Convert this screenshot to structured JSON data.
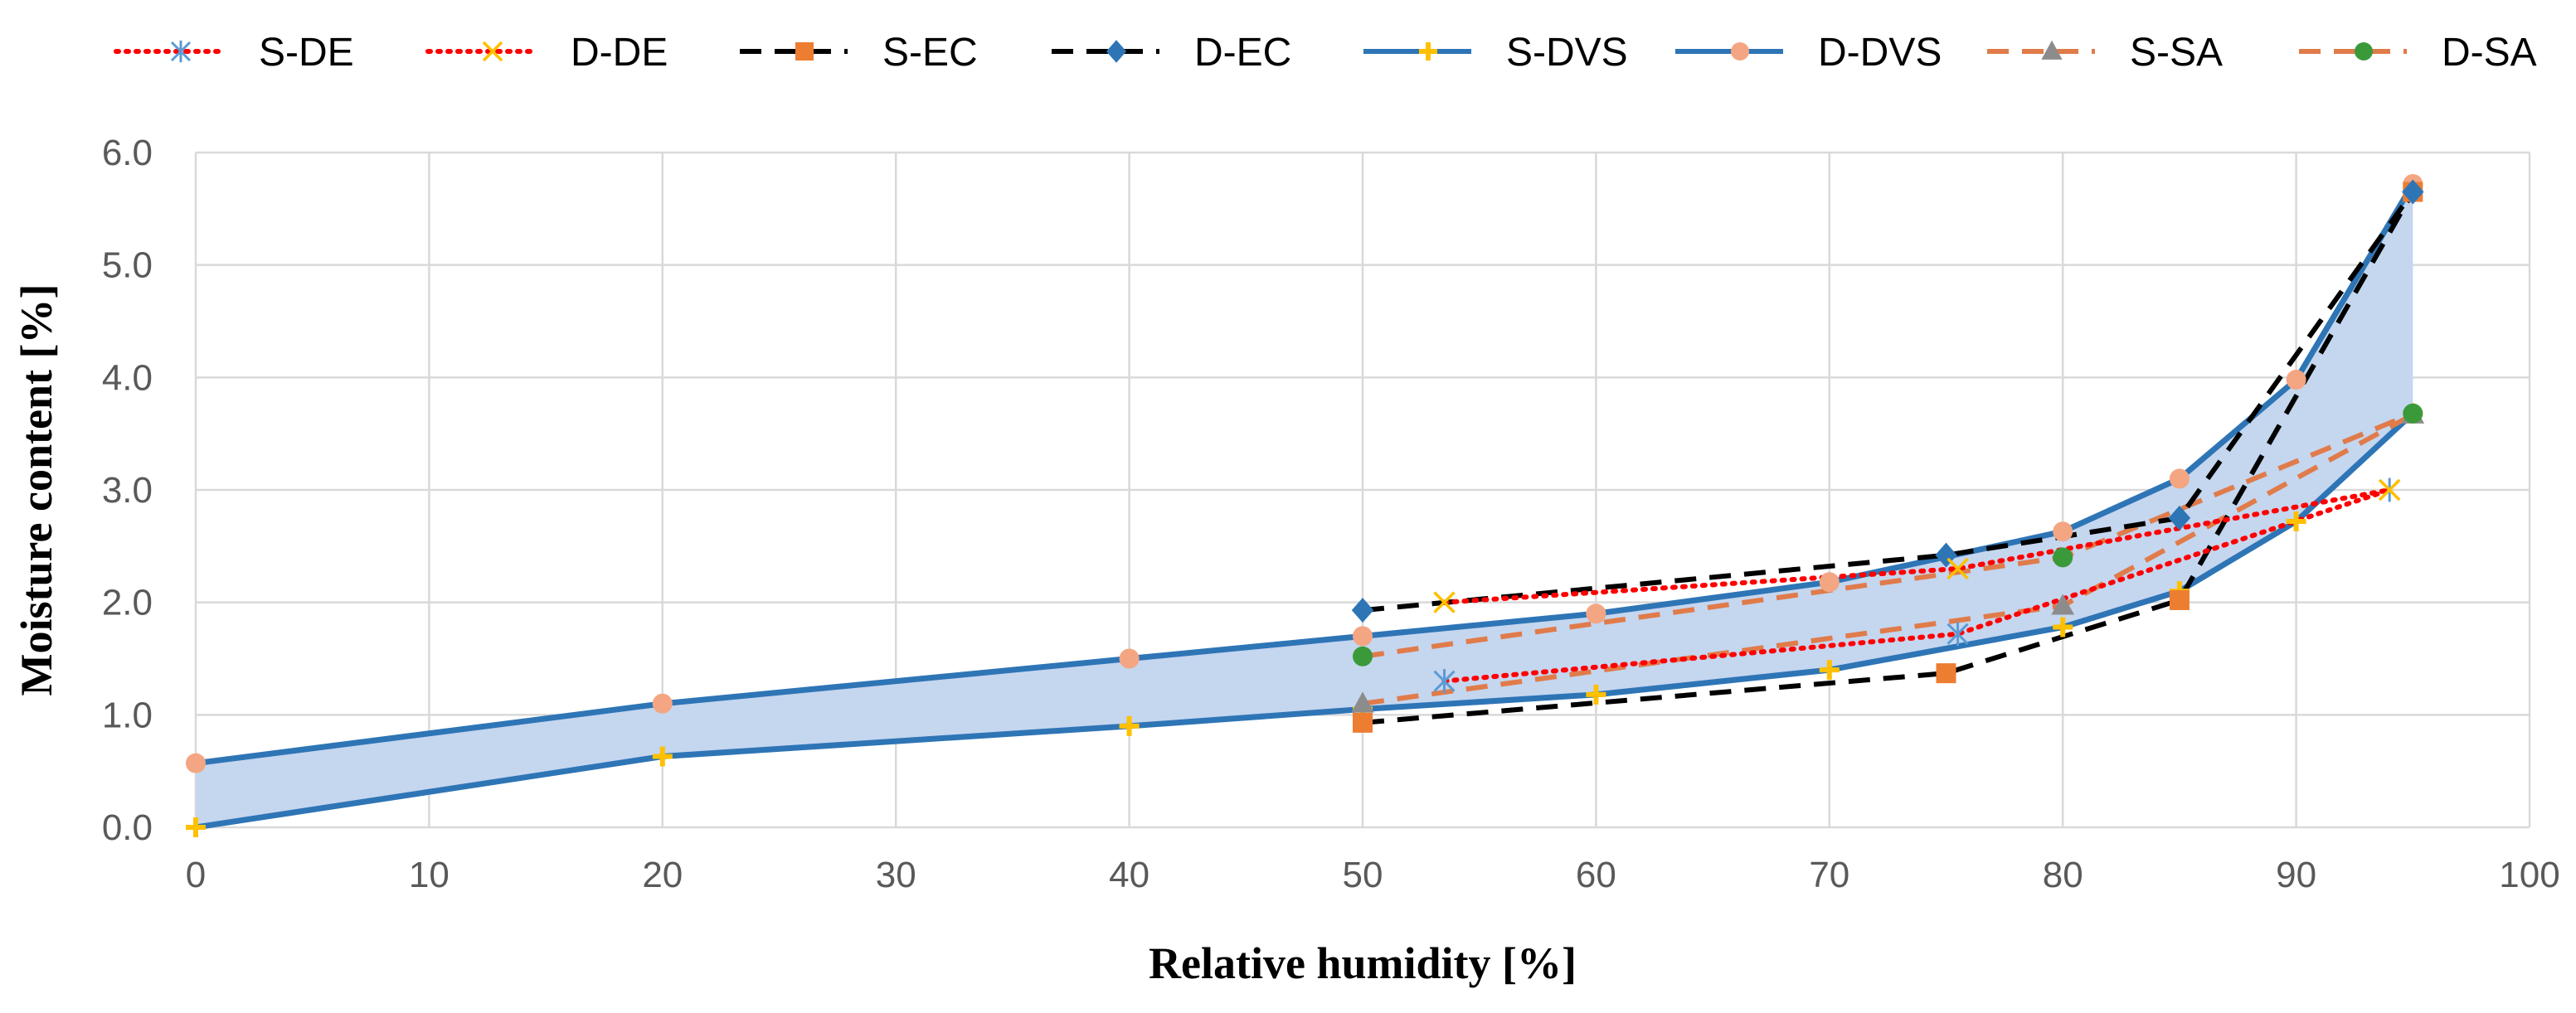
{
  "chart_data": {
    "type": "line",
    "xlabel": "Relative humidity [%]",
    "ylabel": "Moisture content [%]",
    "xlim": [
      0,
      100
    ],
    "ylim": [
      0,
      6
    ],
    "x_ticks": [
      0,
      10,
      20,
      30,
      40,
      50,
      60,
      70,
      80,
      90,
      100
    ],
    "y_ticks": [
      "0.0",
      "1.0",
      "2.0",
      "3.0",
      "4.0",
      "5.0",
      "6.0"
    ],
    "grid": true,
    "legend_position": "top",
    "shaded_band_between": [
      "S-DVS",
      "D-DVS"
    ],
    "band_color": "#c5d6ef",
    "series": [
      {
        "name": "S-DE",
        "color": "#ff0000",
        "dash": "dotted",
        "marker": "asterisk",
        "marker_color": "#5b9bd5",
        "x": [
          53.5,
          75.5,
          94
        ],
        "y": [
          1.3,
          1.72,
          3.0
        ]
      },
      {
        "name": "D-DE",
        "color": "#ff0000",
        "dash": "dotted",
        "marker": "x",
        "marker_color": "#ffc000",
        "x": [
          53.5,
          75.5,
          94
        ],
        "y": [
          2.0,
          2.3,
          3.0
        ]
      },
      {
        "name": "S-EC",
        "color": "#000000",
        "dash": "dashed",
        "marker": "square",
        "marker_color": "#ed7d31",
        "x": [
          50,
          75,
          85,
          95
        ],
        "y": [
          0.93,
          1.37,
          2.02,
          5.65
        ]
      },
      {
        "name": "D-EC",
        "color": "#000000",
        "dash": "dashed",
        "marker": "diamond",
        "marker_color": "#2e75b6",
        "x": [
          50,
          75,
          85,
          95
        ],
        "y": [
          1.93,
          2.42,
          2.75,
          5.65
        ]
      },
      {
        "name": "S-DVS",
        "color": "#2e75b6",
        "dash": "solid",
        "marker": "plus",
        "marker_color": "#ffc000",
        "x": [
          0,
          20,
          40,
          50,
          60,
          70,
          80,
          85,
          90,
          95
        ],
        "y": [
          0.0,
          0.63,
          0.9,
          1.05,
          1.18,
          1.4,
          1.78,
          2.1,
          2.72,
          3.68
        ]
      },
      {
        "name": "D-DVS",
        "color": "#2e75b6",
        "dash": "solid",
        "marker": "circle",
        "marker_color": "#f4a582",
        "x": [
          0,
          20,
          40,
          50,
          60,
          70,
          80,
          85,
          90,
          95
        ],
        "y": [
          0.57,
          1.1,
          1.5,
          1.7,
          1.9,
          2.18,
          2.63,
          3.1,
          3.98,
          5.72
        ]
      },
      {
        "name": "S-SA",
        "color": "#e07b4a",
        "dash": "dashed",
        "marker": "triangle",
        "marker_color": "#8c8c8c",
        "x": [
          50,
          80,
          95
        ],
        "y": [
          1.1,
          1.97,
          3.67
        ]
      },
      {
        "name": "D-SA",
        "color": "#e07b4a",
        "dash": "dashed",
        "marker": "circle",
        "marker_color": "#3a9a3a",
        "x": [
          50,
          80,
          95
        ],
        "y": [
          1.52,
          2.4,
          3.68
        ]
      }
    ]
  }
}
